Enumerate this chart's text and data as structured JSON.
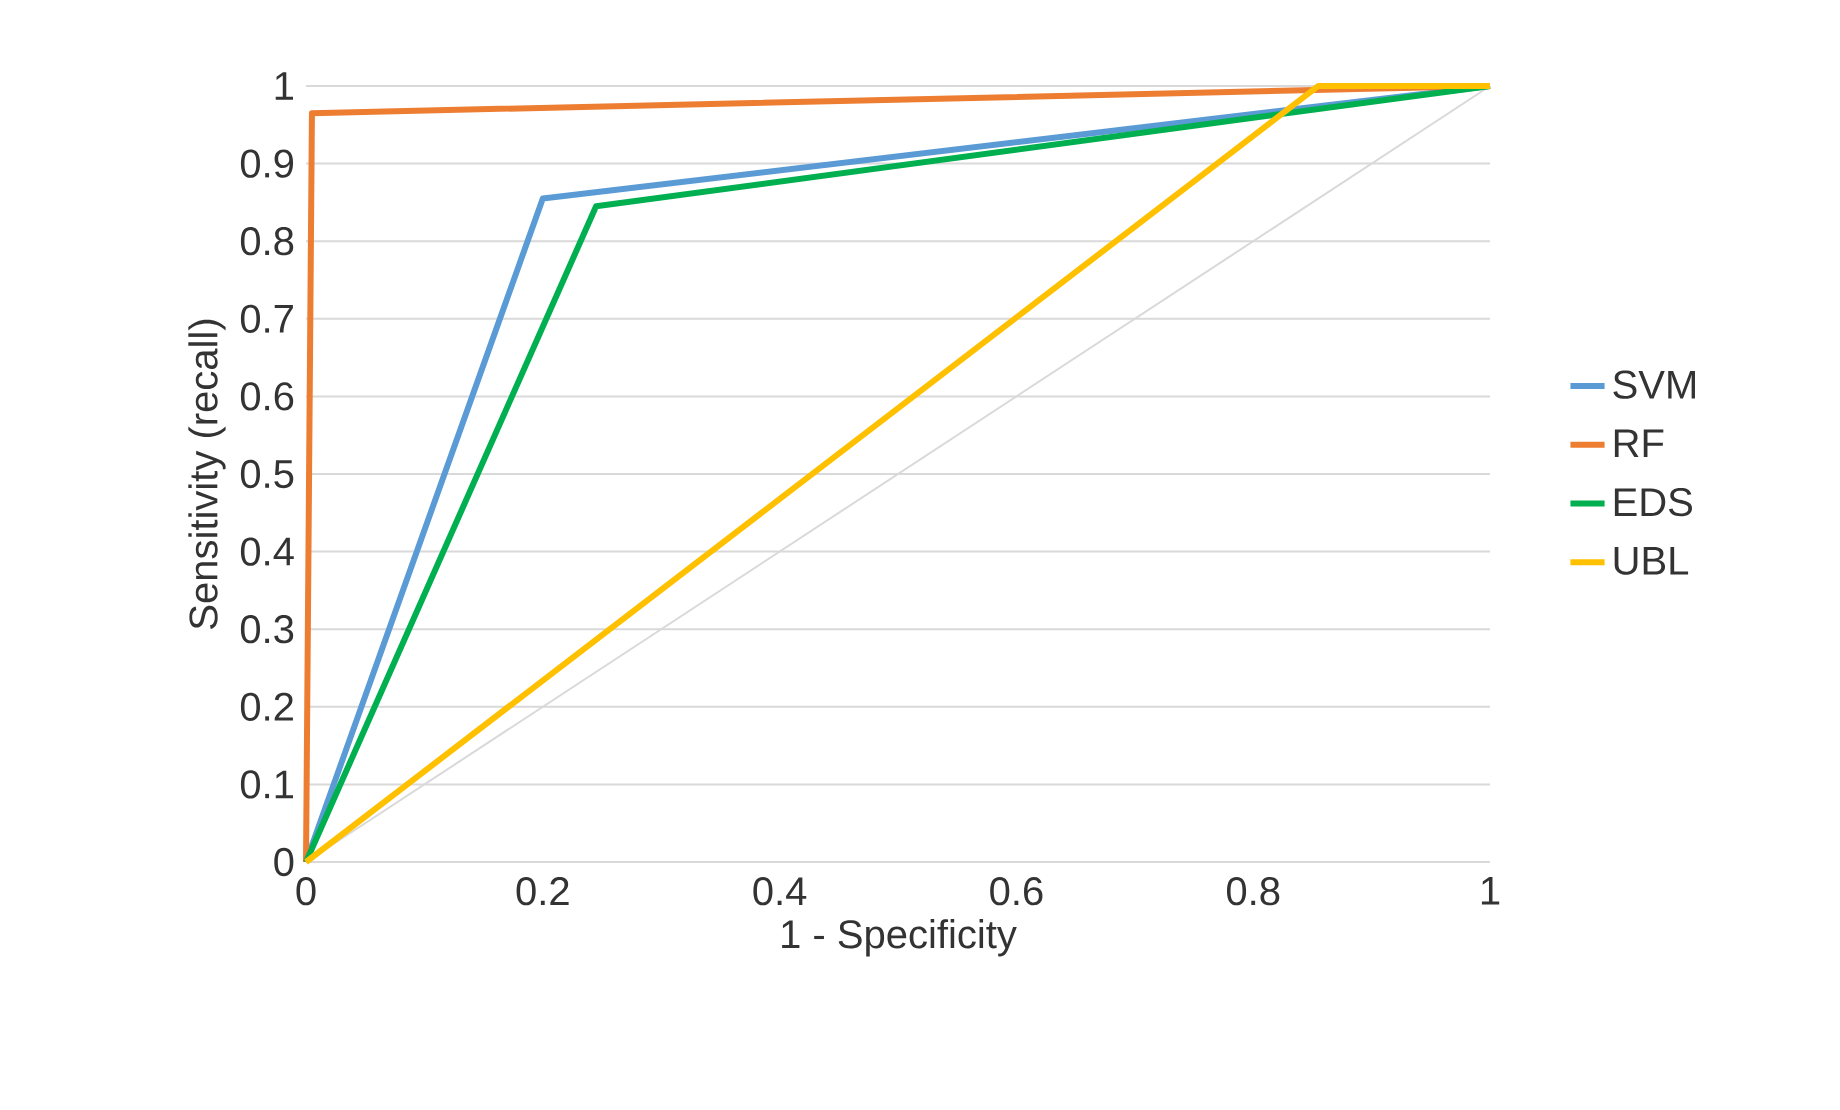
{
  "chart_data": {
    "type": "line",
    "xlabel": "1 - Specificity",
    "ylabel": "Sensitivity (recall)",
    "xlim": [
      0,
      1
    ],
    "ylim": [
      0,
      1
    ],
    "xticks": [
      0,
      0.2,
      0.4,
      0.6,
      0.8,
      1
    ],
    "yticks": [
      0,
      0.1,
      0.2,
      0.3,
      0.4,
      0.5,
      0.6,
      0.7,
      0.8,
      0.9,
      1
    ],
    "grid": "y",
    "legend": "right",
    "marker": "none",
    "line_style": "solid",
    "series": [
      {
        "color": "#d9d9d9",
        "x": [
          0,
          1
        ],
        "values": [
          0,
          1
        ]
      },
      {
        "name": "SVM",
        "color": "#5b9bd5",
        "x": [
          0,
          0.2,
          1
        ],
        "values": [
          0,
          0.855,
          1
        ]
      },
      {
        "name": "RF",
        "color": "#ed7d31",
        "x": [
          0,
          0.005,
          1
        ],
        "values": [
          0,
          0.965,
          1
        ]
      },
      {
        "name": "EDS",
        "color": "#00b050",
        "x": [
          0,
          0.245,
          1
        ],
        "values": [
          0,
          0.845,
          1
        ]
      },
      {
        "name": "UBL",
        "color": "#ffc000",
        "x": [
          0,
          0.855,
          1
        ],
        "values": [
          0,
          1,
          1
        ]
      }
    ]
  }
}
